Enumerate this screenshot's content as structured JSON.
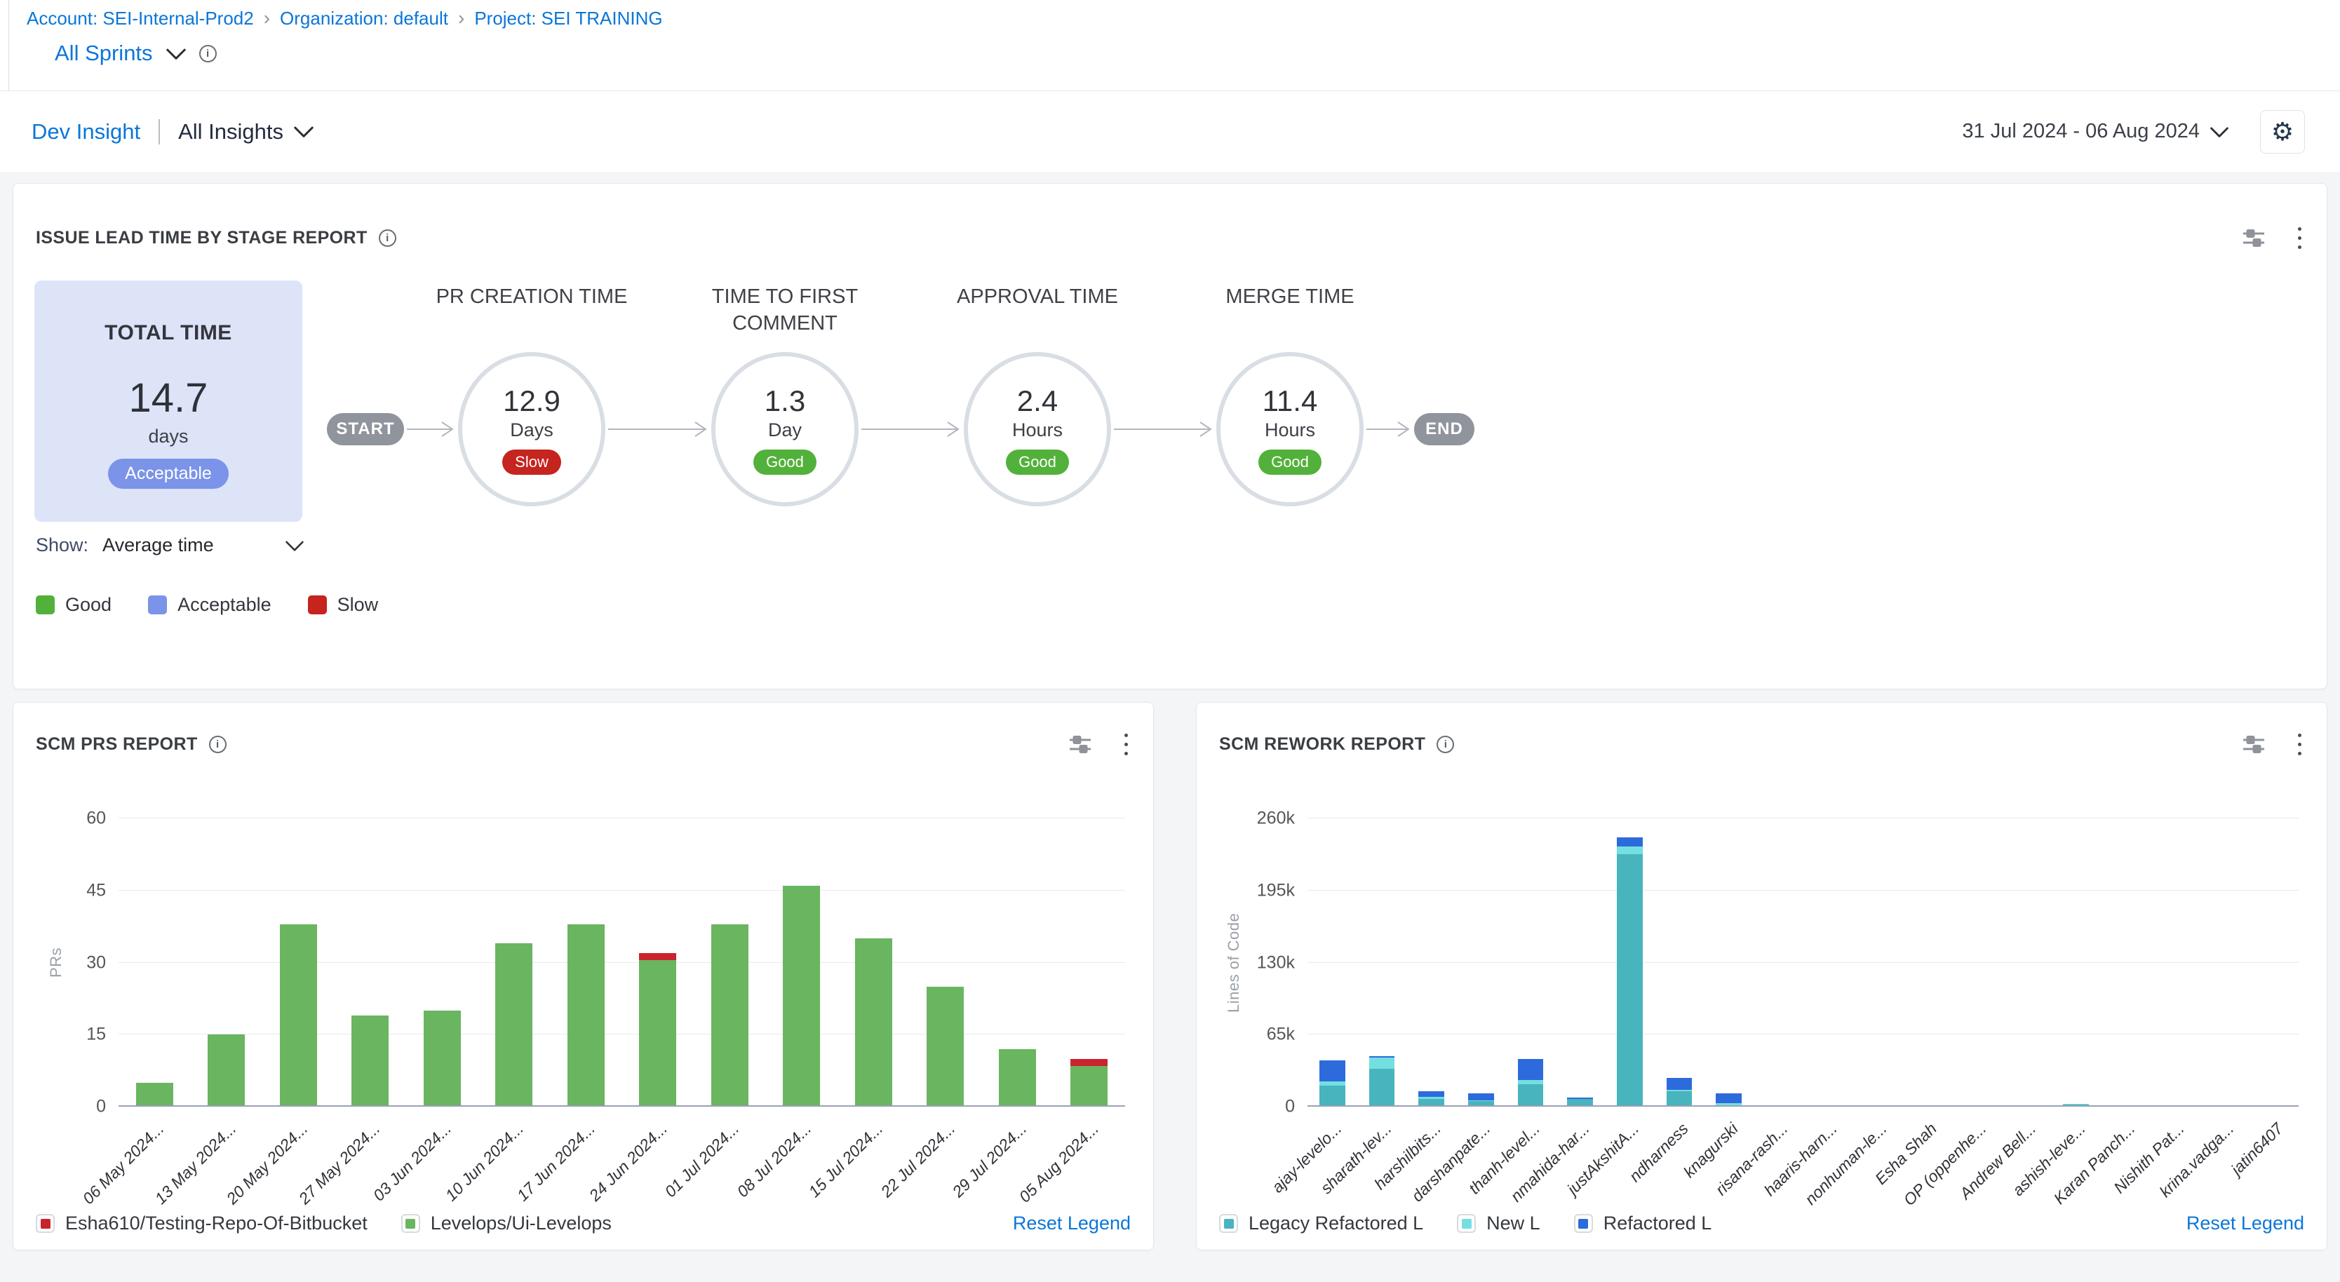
{
  "colors": {
    "accent": "#0b76d8",
    "good": "#52b13a",
    "acceptable": "#7b93e8",
    "slow": "#c5241f"
  },
  "icons": {
    "gear_glyph": "⚙",
    "breadcrumb_separator": "›",
    "info_glyph": "i"
  },
  "topbar": {
    "breadcrumb": {
      "account": "Account: SEI-Internal-Prod2",
      "organization": "Organization: default",
      "project": "Project: SEI TRAINING"
    },
    "sprint_selector": {
      "label": "All Sprints"
    }
  },
  "insight_bar": {
    "insight_name": "Dev Insight",
    "insights_dropdown": "All Insights",
    "date_range": "31 Jul 2024 - 06 Aug 2024"
  },
  "lead_time_panel": {
    "title": "ISSUE LEAD TIME BY STAGE REPORT",
    "total": {
      "label": "TOTAL TIME",
      "value": "14.7",
      "unit": "days",
      "rating": "Acceptable",
      "rating_color": "#7b93e8"
    },
    "flow_start": "START",
    "flow_end": "END",
    "stages": [
      {
        "title": "PR CREATION TIME",
        "value": "12.9",
        "unit": "Days",
        "rating": "Slow",
        "rating_color": "#c5241f"
      },
      {
        "title": "TIME TO FIRST COMMENT",
        "value": "1.3",
        "unit": "Day",
        "rating": "Good",
        "rating_color": "#52b13a"
      },
      {
        "title": "APPROVAL TIME",
        "value": "2.4",
        "unit": "Hours",
        "rating": "Good",
        "rating_color": "#52b13a"
      },
      {
        "title": "MERGE TIME",
        "value": "11.4",
        "unit": "Hours",
        "rating": "Good",
        "rating_color": "#52b13a"
      }
    ],
    "show_label": "Show:",
    "show_value": "Average time",
    "legend": [
      {
        "label": "Good",
        "color": "#52b13a"
      },
      {
        "label": "Acceptable",
        "color": "#7b93e8"
      },
      {
        "label": "Slow",
        "color": "#c5241f"
      }
    ]
  },
  "chart_data": [
    {
      "id": "scm_prs",
      "type": "bar",
      "title": "SCM PRS REPORT",
      "ylabel": "PRs",
      "ylim": [
        0,
        60
      ],
      "grid": true,
      "legend_position": "bottom",
      "reset_legend_label": "Reset Legend",
      "yticks": [
        {
          "value": 0,
          "label": "0"
        },
        {
          "value": 15,
          "label": "15"
        },
        {
          "value": 30,
          "label": "30"
        },
        {
          "value": 45,
          "label": "45"
        },
        {
          "value": 60,
          "label": "60"
        }
      ],
      "categories": [
        "06 May 2024...",
        "13 May 2024...",
        "20 May 2024...",
        "27 May 2024...",
        "03 Jun 2024...",
        "10 Jun 2024...",
        "17 Jun 2024...",
        "24 Jun 2024...",
        "01 Jul 2024...",
        "08 Jul 2024...",
        "15 Jul 2024...",
        "22 Jul 2024...",
        "29 Jul 2024...",
        "05 Aug 2024..."
      ],
      "series": [
        {
          "name": "Levelops/Ui-Levelops",
          "color": "#6ab55f",
          "values": [
            5,
            15,
            38,
            19,
            20,
            34,
            38,
            30.5,
            38,
            46,
            35,
            25,
            12,
            8.5
          ]
        },
        {
          "name": "Esha610/Testing-Repo-Of-Bitbucket",
          "color": "#c9232e",
          "values": [
            0,
            0,
            0,
            0,
            0,
            0,
            0,
            1.5,
            0,
            0,
            0,
            0,
            0,
            1.5
          ]
        }
      ],
      "legend": [
        {
          "label": "Esha610/Testing-Repo-Of-Bitbucket",
          "color": "#c9232e"
        },
        {
          "label": "Levelops/Ui-Levelops",
          "color": "#6ab55f"
        }
      ]
    },
    {
      "id": "scm_rework",
      "type": "stacked-bar",
      "title": "SCM REWORK REPORT",
      "ylabel": "Lines of Code",
      "ylim": [
        0,
        260000
      ],
      "grid": true,
      "legend_position": "bottom",
      "reset_legend_label": "Reset Legend",
      "yticks": [
        {
          "value": 0,
          "label": "0"
        },
        {
          "value": 65000,
          "label": "65k"
        },
        {
          "value": 130000,
          "label": "130k"
        },
        {
          "value": 195000,
          "label": "195k"
        },
        {
          "value": 260000,
          "label": "260k"
        }
      ],
      "categories": [
        "ajay-levelo...",
        "sharath-lev...",
        "harshilbits...",
        "darshanpate...",
        "thanh-level...",
        "nmahida-har...",
        "justAkshitA...",
        "ndharness",
        "knagurski",
        "risana-rash...",
        "haaris-harn...",
        "nonhuman-le...",
        "Esha Shah",
        "OP (oppenhe...",
        "Andrew Bell...",
        "ashish-leve...",
        "Karan Panch...",
        "Nishith Pat...",
        "krina.vadga...",
        "jatin6407"
      ],
      "series": [
        {
          "name": "Legacy Refactored L",
          "color": "#47b4be",
          "values": [
            19000,
            34000,
            7000,
            5000,
            20000,
            7000,
            228000,
            14000,
            1000,
            0,
            0,
            0,
            0,
            0,
            0,
            2000,
            0,
            0,
            0,
            0
          ]
        },
        {
          "name": "New L",
          "color": "#73dfe0",
          "values": [
            4000,
            10000,
            2000,
            1000,
            4000,
            0,
            7000,
            1000,
            2000,
            0,
            0,
            0,
            0,
            0,
            0,
            500,
            0,
            0,
            0,
            0
          ]
        },
        {
          "name": "Refactored L",
          "color": "#2d6bdc",
          "values": [
            19000,
            1500,
            5000,
            6000,
            19000,
            1500,
            8000,
            11000,
            9000,
            0,
            0,
            0,
            0,
            0,
            0,
            0,
            0,
            0,
            0,
            0
          ]
        }
      ],
      "legend": [
        {
          "label": "Legacy Refactored L",
          "color": "#47b4be"
        },
        {
          "label": "New L",
          "color": "#73dfe0"
        },
        {
          "label": "Refactored L",
          "color": "#2d6bdc"
        }
      ]
    }
  ]
}
